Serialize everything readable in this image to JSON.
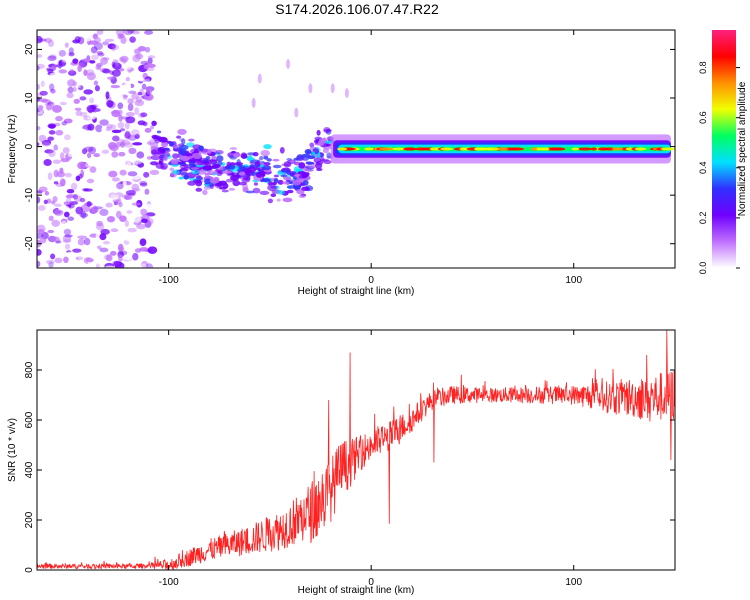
{
  "title": "S174.2026.106.07.47.R22",
  "chart_data": [
    {
      "type": "heatmap",
      "name": "spectrogram",
      "xlabel": "Height of straight line (km)",
      "ylabel": "Frequency (Hz)",
      "xlim": [
        -165,
        150
      ],
      "ylim": [
        -25,
        24
      ],
      "x_ticks": [
        -100,
        0,
        100
      ],
      "y_ticks": [
        -20,
        -10,
        0,
        10,
        20
      ],
      "colorbar": {
        "label": "Normalized spectral amplitude",
        "range": [
          0,
          0.95
        ],
        "ticks": [
          0.0,
          0.2,
          0.4,
          0.6,
          0.8
        ],
        "colors": [
          "#ffffff",
          "#c070ff",
          "#7000ff",
          "#3030ff",
          "#00e0ff",
          "#00ff60",
          "#f0ff00",
          "#ff9000",
          "#ff0000",
          "#ff2080"
        ]
      },
      "features": {
        "noise_region_x": [
          -165,
          -108
        ],
        "transition_region_x": [
          -108,
          -20
        ],
        "carrier_band_x": [
          -20,
          150
        ],
        "carrier_frequency_hz": -0.5,
        "carrier_halfwidth_hz": 1.8
      }
    },
    {
      "type": "line",
      "name": "snr",
      "xlabel": "Height of straight line (km)",
      "ylabel": "SNR (10 * v/v)",
      "xlim": [
        -165,
        150
      ],
      "ylim": [
        0,
        960
      ],
      "x_ticks": [
        -100,
        0,
        100
      ],
      "y_ticks": [
        0,
        200,
        400,
        600,
        800
      ],
      "color": "#ff2222",
      "trend": {
        "x": [
          -165,
          -140,
          -120,
          -100,
          -80,
          -60,
          -45,
          -30,
          -20,
          -15,
          -10,
          -5,
          0,
          10,
          20,
          30,
          40,
          60,
          80,
          100,
          120,
          140,
          150
        ],
        "y": [
          15,
          15,
          15,
          20,
          80,
          120,
          160,
          230,
          320,
          400,
          430,
          470,
          500,
          540,
          600,
          680,
          700,
          700,
          700,
          700,
          690,
          690,
          700
        ]
      },
      "noise_amplitude": {
        "x": [
          -165,
          -110,
          -100,
          -80,
          -60,
          -40,
          -25,
          -15,
          -5,
          10,
          30,
          60,
          100,
          120,
          150
        ],
        "y": [
          10,
          10,
          25,
          45,
          60,
          90,
          140,
          120,
          70,
          60,
          40,
          30,
          40,
          70,
          110
        ]
      },
      "spikes": [
        {
          "x": -10.5,
          "y": 870
        },
        {
          "x": -21,
          "y": 680
        },
        {
          "x": 31,
          "y": 430
        },
        {
          "x": 9,
          "y": 185
        },
        {
          "x": 146,
          "y": 960
        },
        {
          "x": 136,
          "y": 860
        },
        {
          "x": 148,
          "y": 440
        }
      ]
    }
  ]
}
